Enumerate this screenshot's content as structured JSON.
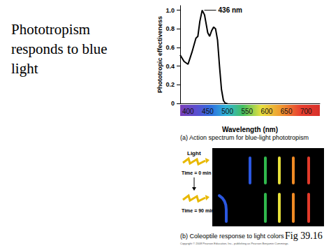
{
  "chart_data": {
    "type": "line",
    "title": "(a) Action spectrum for blue-light phototropism",
    "x_label": "Wavelength (nm)",
    "y_label": "Phototropic effectiveness",
    "x": [
      380,
      390,
      400,
      410,
      420,
      425,
      430,
      436,
      442,
      450,
      455,
      460,
      465,
      470,
      475,
      480,
      485,
      490,
      495,
      500
    ],
    "values": [
      0.52,
      0.45,
      0.42,
      0.55,
      0.7,
      0.72,
      0.88,
      1.0,
      0.95,
      0.76,
      0.72,
      0.78,
      0.82,
      0.8,
      0.68,
      0.4,
      0.15,
      0.03,
      0,
      0
    ],
    "color": "#000000",
    "xlim": [
      380,
      735
    ],
    "xticks": [
      400,
      450,
      500,
      550,
      600,
      650,
      700
    ],
    "ylim": [
      0,
      1.05
    ],
    "yticks": [
      0,
      0.2,
      0.4,
      0.6,
      0.8,
      {
        "value": 1,
        "label": "1.0"
      }
    ],
    "grid": false,
    "annotations": [
      {
        "text": "436 nm",
        "x": 436,
        "y": 1
      }
    ]
  },
  "slide": {
    "heading": "Phototropism responds to blue light",
    "panel_b": {
      "caption": "(b) Coleoptile response to light colors",
      "light_label": "Light",
      "times": [
        "Time = 0 min",
        "Time = 90 min"
      ]
    },
    "figure": "Fig 39.16",
    "copyright": "Copyright © 2008 Pearson Education, Inc., publishing as Pearson Benjamin Cummings."
  }
}
